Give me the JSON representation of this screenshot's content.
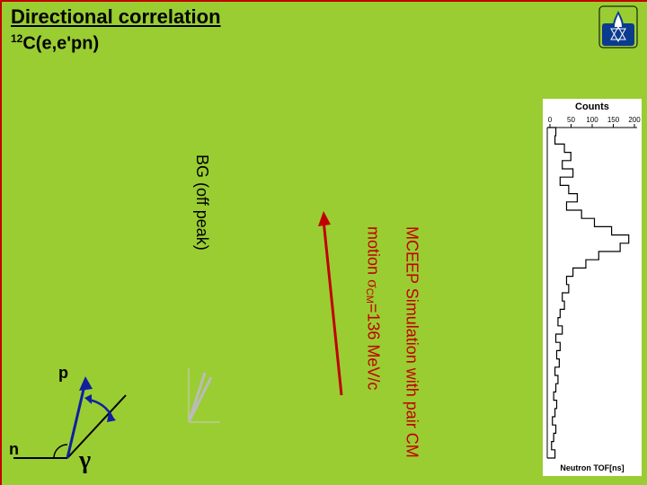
{
  "colors": {
    "background": "#9acd32",
    "border": "#c00000",
    "title": "#000000",
    "mceep_text": "#c00000",
    "arrow": "#c00000",
    "logo_bg": "#0a3b8f",
    "logo_flame": "#ffffff",
    "chart_bg": "#ffffff",
    "chart_axis": "#000000",
    "angle_arrow": "#1020a0",
    "histogram_line": "#000000"
  },
  "title": "Directional correlation",
  "subtitle_sup": "12",
  "subtitle_main": "C(e,e'pn)",
  "bg_label": "BG (off peak)",
  "mceep_line1": "MCEEP Simulation with pair CM",
  "mceep_line2_prefix": "motion ",
  "mceep_sigma": "σ",
  "mceep_sub": "CM",
  "mceep_line2_suffix": "=136 MeV/c",
  "angle": {
    "p_label": "p",
    "n_label": "n",
    "gamma_label": "γ"
  },
  "chart": {
    "y_label": "Counts",
    "x_label": "Neutron TOF[ns]",
    "y_ticks": [
      "0",
      "50",
      "100",
      "150",
      "200"
    ],
    "y_tick_positions": [
      0,
      50,
      100,
      150,
      200
    ],
    "y_range": [
      0,
      220
    ],
    "histogram_bins": [
      20,
      18,
      40,
      55,
      35,
      60,
      30,
      50,
      70,
      45,
      80,
      110,
      150,
      190,
      170,
      120,
      90,
      60,
      45,
      50,
      35,
      40,
      30,
      25,
      35,
      20,
      30,
      22,
      28,
      18,
      25,
      20,
      15,
      22,
      18,
      12,
      20,
      15,
      10,
      18
    ]
  }
}
